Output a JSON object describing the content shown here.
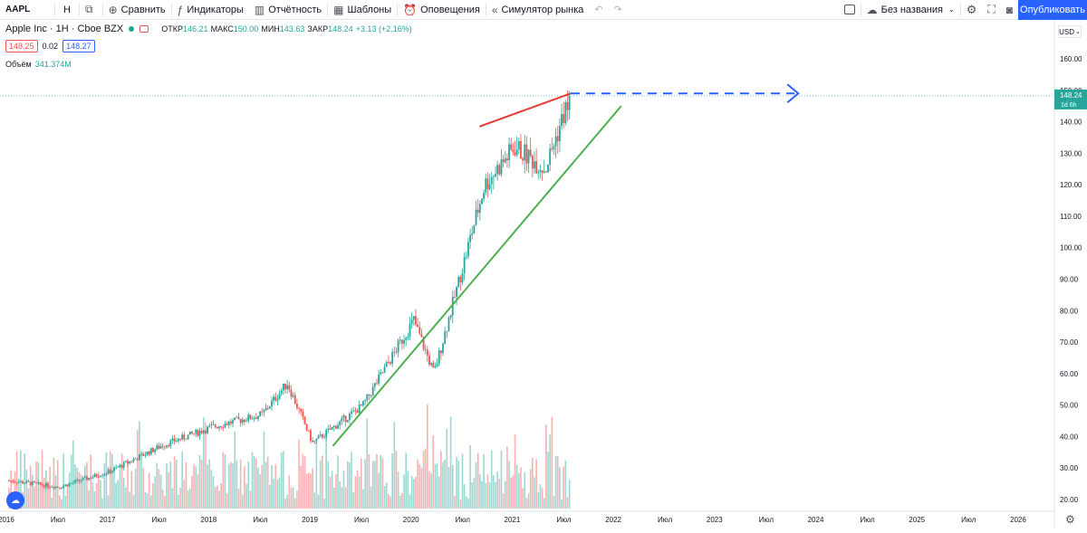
{
  "toolbar": {
    "symbol": "AAPL",
    "interval": "Н",
    "compare": "Сравнить",
    "indicators": "Индикаторы",
    "reports": "Отчётность",
    "templates": "Шаблоны",
    "alerts": "Оповещения",
    "simulator": "Симулятор рынка",
    "layout_name": "Без названия",
    "publish": "Опубликовать"
  },
  "legend": {
    "title": "Apple Inc · 1Н · Cboe BZX",
    "open_label": "ОТКР",
    "open": "146.21",
    "high_label": "МАКС",
    "high": "150.00",
    "low_label": "МИН",
    "low": "143.63",
    "close_label": "ЗАКР",
    "close": "148.24",
    "change": "+3.13 (+2.16%)",
    "bid": "148.25",
    "spread": "0.02",
    "ask": "148.27",
    "volume_label": "Объём",
    "volume": "341.374M",
    "currency": "USD"
  },
  "price_tag": {
    "value": "148.24",
    "sub": "1d 6h"
  },
  "colors": {
    "up": "#26a69a",
    "down": "#ef5350",
    "accent": "#2962ff",
    "green_line": "#4caf50",
    "red_line": "#e53935"
  },
  "chart_data": {
    "type": "candlestick",
    "y_ticks": [
      "160.00",
      "150.00",
      "140.00",
      "130.00",
      "120.00",
      "110.00",
      "100.00",
      "90.00",
      "80.00",
      "70.00",
      "60.00",
      "50.00",
      "40.00",
      "30.00",
      "20.00"
    ],
    "x_ticks": [
      "2016",
      "Июл",
      "2017",
      "Июл",
      "2018",
      "Июл",
      "2019",
      "Июл",
      "2020",
      "Июл",
      "2021",
      "Июл",
      "2022",
      "Июл",
      "2023",
      "Июл",
      "2024",
      "Июл",
      "2025",
      "Июл",
      "2026"
    ],
    "ylim": [
      17,
      166
    ],
    "last_close": 148.24,
    "series": [
      {
        "x": 2016.0,
        "close": 26
      },
      {
        "x": 2016.5,
        "close": 24
      },
      {
        "x": 2017.0,
        "close": 29
      },
      {
        "x": 2017.5,
        "close": 37
      },
      {
        "x": 2018.0,
        "close": 43
      },
      {
        "x": 2018.5,
        "close": 47
      },
      {
        "x": 2018.75,
        "close": 57
      },
      {
        "x": 2019.0,
        "close": 38
      },
      {
        "x": 2019.5,
        "close": 50
      },
      {
        "x": 2020.0,
        "close": 77
      },
      {
        "x": 2020.2,
        "close": 60
      },
      {
        "x": 2020.5,
        "close": 96
      },
      {
        "x": 2020.7,
        "close": 120
      },
      {
        "x": 2021.0,
        "close": 132
      },
      {
        "x": 2021.3,
        "close": 125
      },
      {
        "x": 2021.5,
        "close": 144
      }
    ],
    "trendline_support": {
      "from": {
        "x": 2019.2,
        "y": 37
      },
      "to": {
        "x": 2022.05,
        "y": 145
      }
    },
    "trendline_resistance": {
      "from": {
        "x": 2020.65,
        "y": 138.5
      },
      "to": {
        "x": 2021.55,
        "y": 149
      }
    },
    "projection": {
      "from": {
        "x": 2021.55,
        "y": 149
      },
      "to": {
        "x": 2023.8,
        "y": 149
      }
    }
  }
}
